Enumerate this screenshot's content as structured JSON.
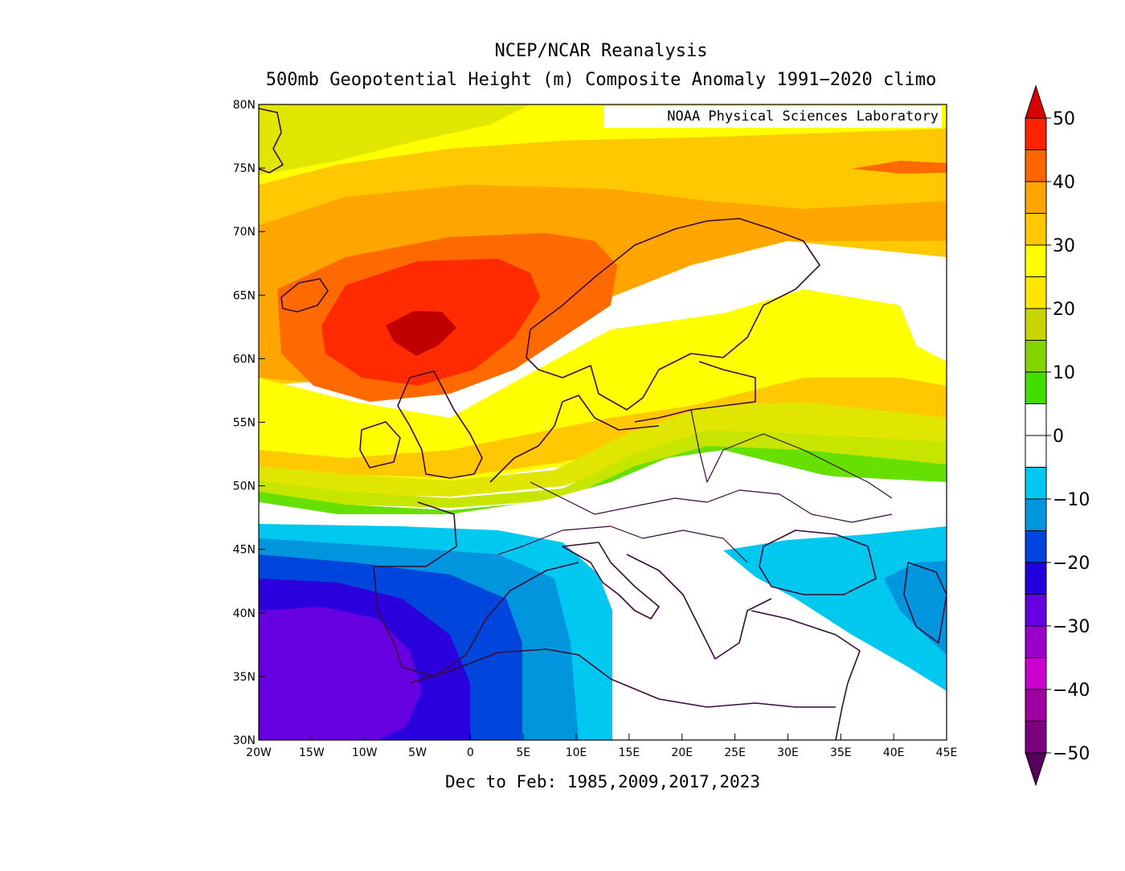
{
  "title": "NCEP/NCAR Reanalysis",
  "subtitle": "500mb Geopotential Height (m) Composite Anomaly 1991−2020 climo",
  "attribution": "NOAA Physical Sciences Laboratory",
  "footer": "Dec to Feb: 1985,2009,2017,2023",
  "map": {
    "lon_range": [
      -20,
      45
    ],
    "lat_range": [
      30,
      80
    ],
    "lon_ticks": [
      "20W",
      "15W",
      "10W",
      "5W",
      "0",
      "5E",
      "10E",
      "15E",
      "20E",
      "25E",
      "30E",
      "35E",
      "40E",
      "45E"
    ],
    "lat_ticks": [
      "80N",
      "75N",
      "70N",
      "65N",
      "60N",
      "55N",
      "50N",
      "45N",
      "40N",
      "35N",
      "30N"
    ],
    "field_colors": {
      "pos45": "#c00000",
      "pos40": "#ff2a00",
      "pos35": "#ff6a00",
      "pos30": "#ffa500",
      "pos25": "#ffc800",
      "pos20": "#ffff00",
      "pos15": "#e1e600",
      "pos10": "#c6e600",
      "pos5": "#66e000",
      "zero": "#ffffff",
      "neg5": "#00c8ee",
      "neg10": "#0095dd",
      "neg15": "#0046dd",
      "neg20": "#2a00dd",
      "neg25": "#6600e0",
      "neg30": "#9900cc"
    },
    "coast_color": "#3a0a3a"
  },
  "colorbar": {
    "labels": [
      "50",
      "40",
      "30",
      "20",
      "10",
      "0",
      "−10",
      "−20",
      "−30",
      "−40",
      "−50"
    ],
    "colors": [
      "#ff2200",
      "#ff6600",
      "#ffa500",
      "#ffc800",
      "#ffff00",
      "#ffe500",
      "#c6d400",
      "#84d400",
      "#44dd00",
      "#ffffff",
      "#ffffff",
      "#00c8ee",
      "#0095dd",
      "#0044dd",
      "#2200dd",
      "#6600e0",
      "#9900cc",
      "#cc00cc",
      "#a000a0",
      "#7a0080"
    ],
    "top_arrow_color": "#d60000",
    "bottom_arrow_color": "#55005a"
  }
}
